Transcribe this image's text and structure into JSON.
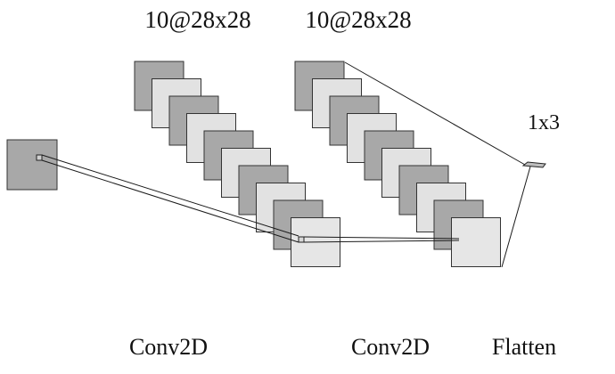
{
  "layers": [
    {
      "id": "input",
      "shape_label": "",
      "type_label": ""
    },
    {
      "id": "conv1",
      "shape_label": "10@28x28",
      "type_label": "Conv2D"
    },
    {
      "id": "conv2",
      "shape_label": "10@28x28",
      "type_label": "Conv2D"
    },
    {
      "id": "flatten",
      "shape_label": "1x3",
      "type_label": "Flatten"
    }
  ],
  "colors": {
    "dark_map": "#a8a8a8",
    "light_map": "#e2e2e2",
    "last_map": "#e6e6e6",
    "outline": "#333333"
  }
}
